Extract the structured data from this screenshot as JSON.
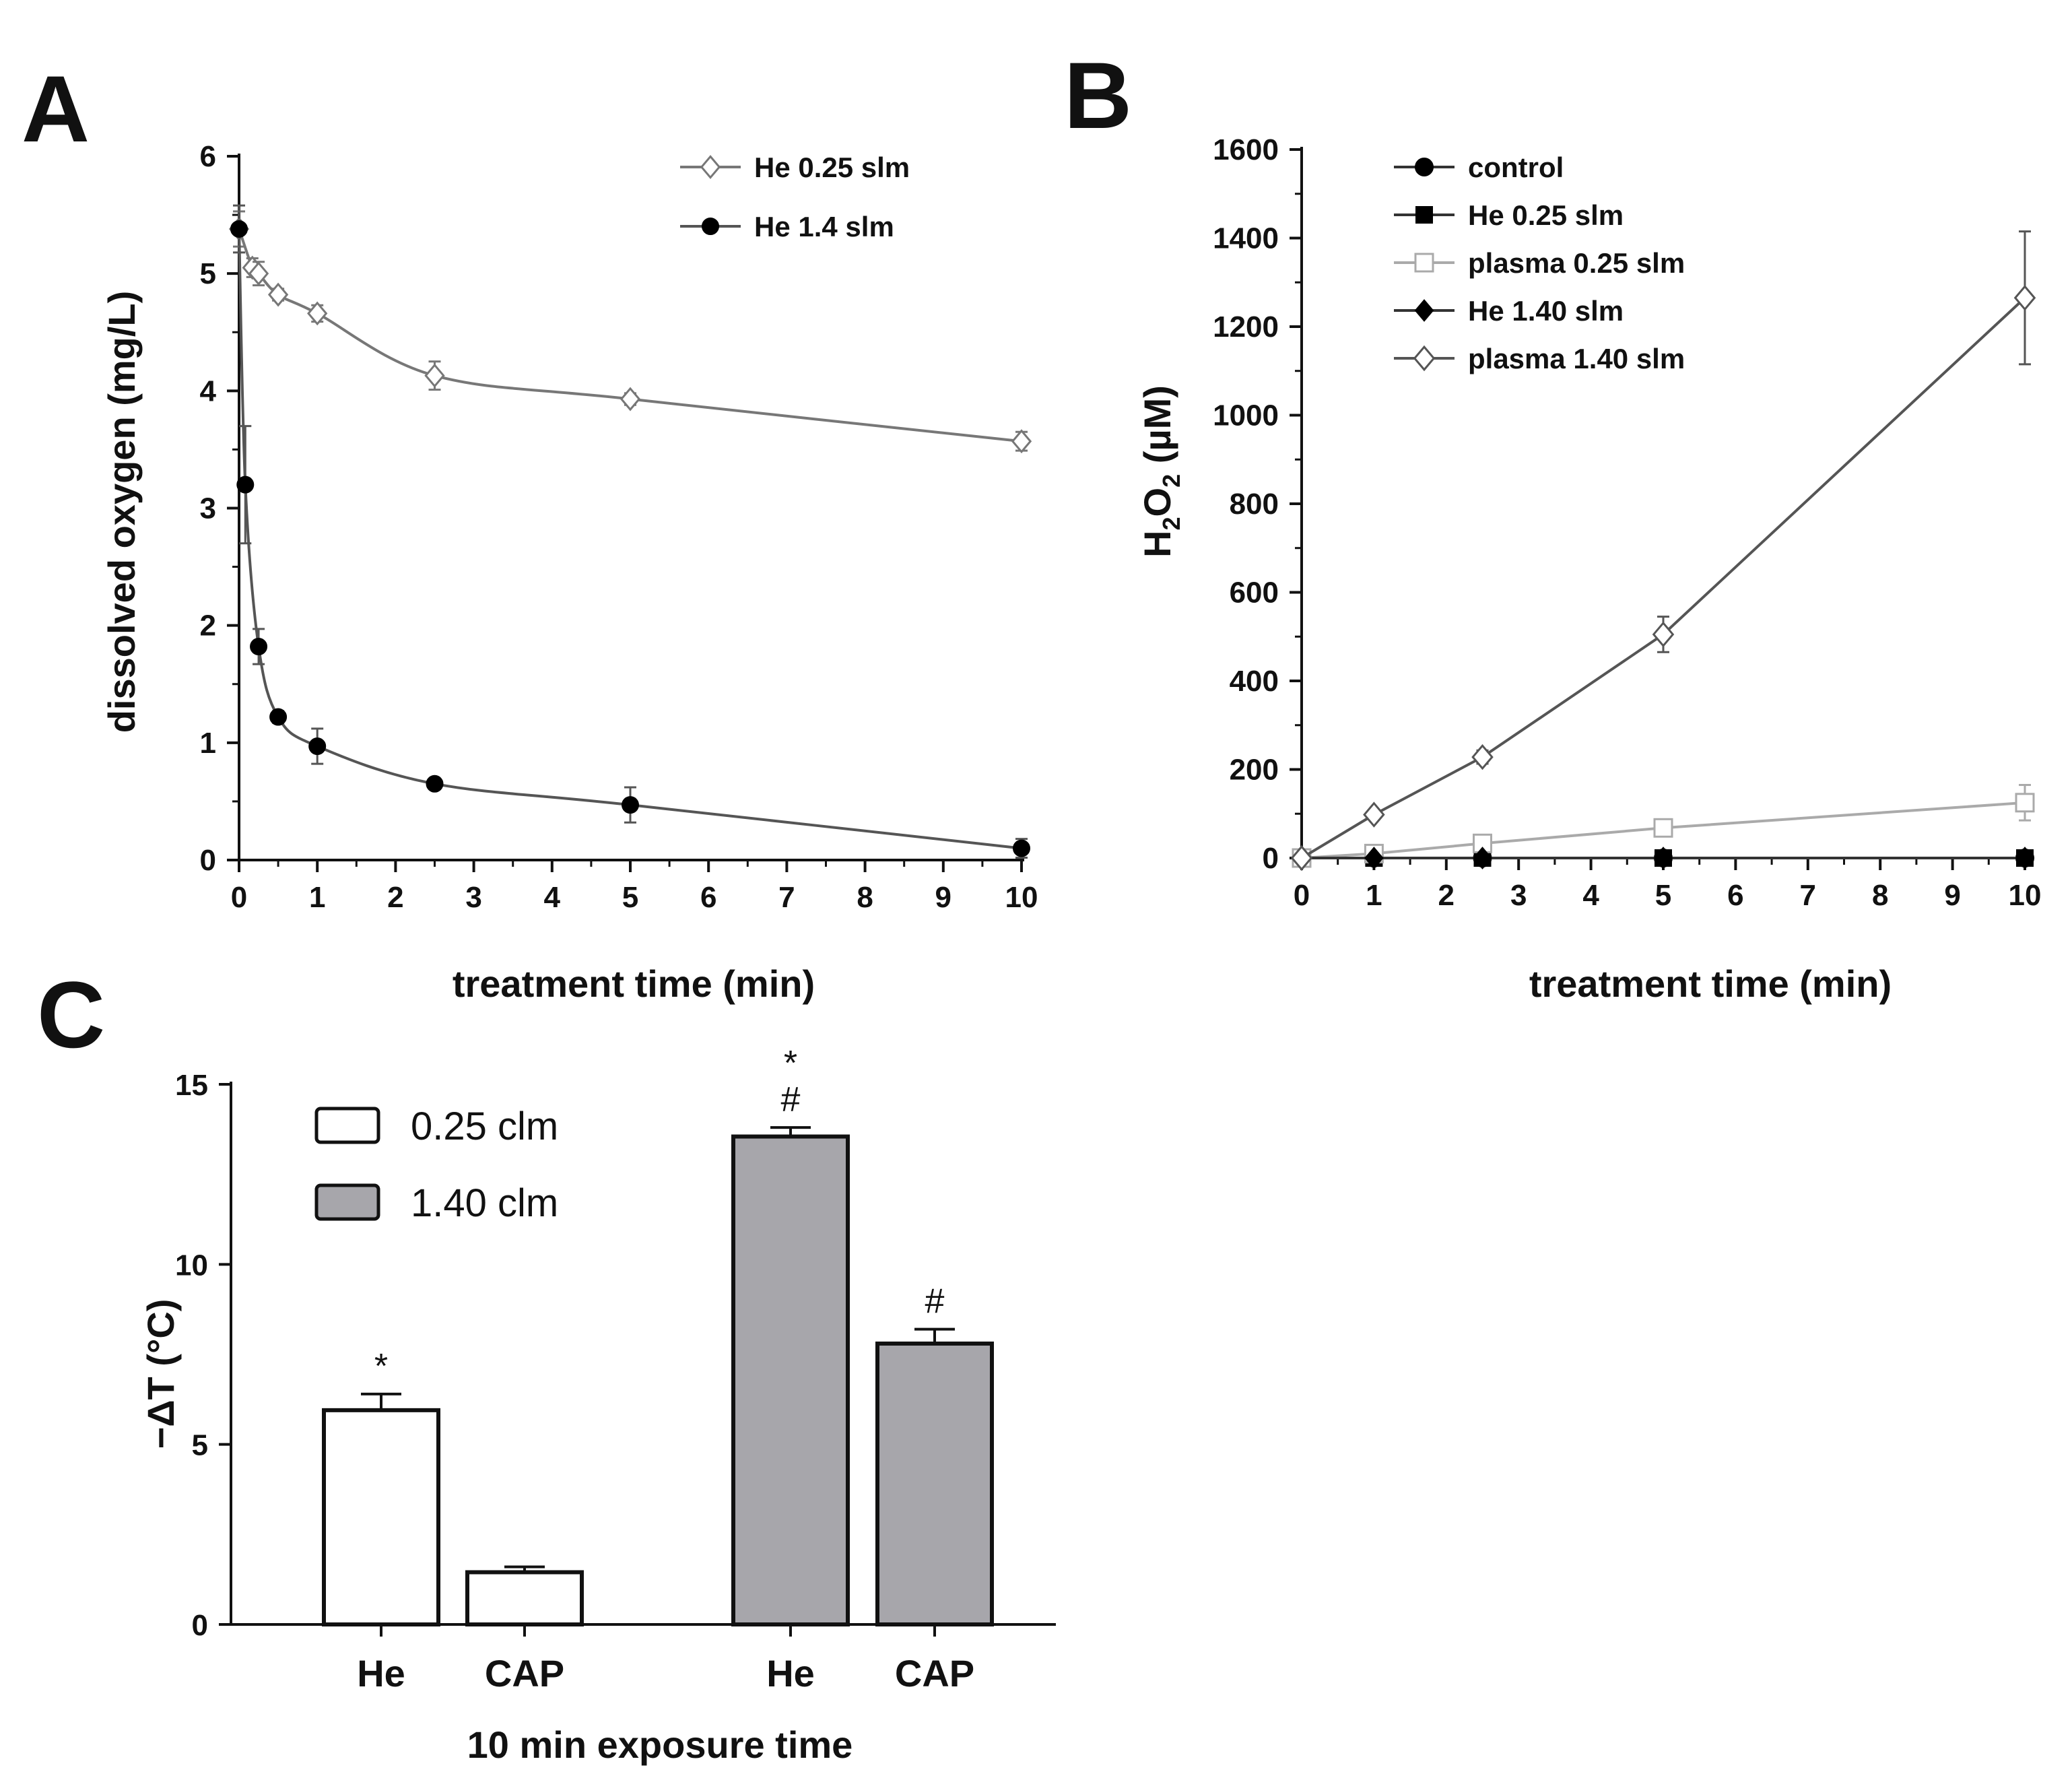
{
  "chart_data": [
    {
      "panel": "A",
      "type": "line",
      "xlabel": "treatment time (min)",
      "ylabel": "dissolved oxygen (mg/L)",
      "xlim": [
        0,
        10
      ],
      "ylim": [
        0,
        6
      ],
      "xticks": [
        "0",
        "1",
        "2",
        "3",
        "4",
        "5",
        "6",
        "7",
        "8",
        "9",
        "10"
      ],
      "yticks": [
        "0",
        "1",
        "2",
        "3",
        "4",
        "5",
        "6"
      ],
      "legend_position": "top-right",
      "series": [
        {
          "name": "He 0.25 slm",
          "marker": "open-diamond",
          "color": "#777777",
          "x": [
            0,
            0.17,
            0.25,
            0.5,
            1,
            2.5,
            5,
            10
          ],
          "y": [
            5.38,
            5.05,
            5.0,
            4.82,
            4.66,
            4.13,
            3.93,
            3.57
          ],
          "err": [
            0.15,
            0.08,
            0.1,
            0.05,
            0.07,
            0.12,
            0.05,
            0.08
          ]
        },
        {
          "name": "He 1.4 slm",
          "marker": "filled-circle",
          "color": "#555555",
          "x": [
            0,
            0.08,
            0.25,
            0.5,
            1,
            2.5,
            5,
            10
          ],
          "y": [
            5.38,
            3.2,
            1.82,
            1.22,
            0.97,
            0.65,
            0.47,
            0.1
          ],
          "err": [
            0.2,
            0.5,
            0.15,
            0.05,
            0.15,
            0.04,
            0.15,
            0.08
          ]
        }
      ]
    },
    {
      "panel": "B",
      "type": "line",
      "xlabel": "treatment time (min)",
      "ylabel_main": "H",
      "ylabel_sub1": "2",
      "ylabel_mid": "O",
      "ylabel_sub2": "2",
      "ylabel_tail": " (µM)",
      "xlim": [
        0,
        10
      ],
      "ylim": [
        0,
        1600
      ],
      "xticks": [
        "0",
        "1",
        "2",
        "3",
        "4",
        "5",
        "6",
        "7",
        "8",
        "9",
        "10"
      ],
      "yticks": [
        "0",
        "200",
        "400",
        "600",
        "800",
        "1000",
        "1200",
        "1400",
        "1600"
      ],
      "legend_position": "top-left",
      "series": [
        {
          "name": "control",
          "marker": "filled-circle",
          "color": "#333333",
          "x": [
            0,
            1,
            2.5,
            5,
            10
          ],
          "y": [
            0,
            0,
            0,
            0,
            0
          ],
          "err": [
            0,
            0,
            0,
            0,
            0
          ]
        },
        {
          "name": "He 0.25 slm",
          "marker": "filled-square",
          "color": "#333333",
          "x": [
            0,
            1,
            2.5,
            5,
            10
          ],
          "y": [
            0,
            0,
            0,
            0,
            0
          ],
          "err": [
            0,
            0,
            0,
            0,
            0
          ]
        },
        {
          "name": "plasma 0.25 slm",
          "marker": "open-square",
          "color": "#aaaaaa",
          "x": [
            0,
            1,
            2.5,
            5,
            10
          ],
          "y": [
            0,
            10,
            33,
            68,
            125
          ],
          "err": [
            0,
            3,
            5,
            8,
            40
          ]
        },
        {
          "name": "He 1.40 slm",
          "marker": "filled-diamond",
          "color": "#333333",
          "x": [
            0,
            1,
            2.5,
            5,
            10
          ],
          "y": [
            0,
            0,
            0,
            0,
            0
          ],
          "err": [
            0,
            0,
            0,
            0,
            0
          ]
        },
        {
          "name": "plasma 1.40 slm",
          "marker": "open-diamond",
          "color": "#555555",
          "x": [
            0,
            1,
            2.5,
            5,
            10
          ],
          "y": [
            0,
            98,
            228,
            505,
            1265
          ],
          "err": [
            0,
            10,
            15,
            40,
            150
          ]
        }
      ]
    },
    {
      "panel": "C",
      "type": "bar",
      "xlabel": "10 min exposure time",
      "ylabel": "−ΔT (°C)",
      "ylim": [
        0,
        15
      ],
      "yticks": [
        "0",
        "5",
        "10",
        "15"
      ],
      "categories": [
        "He",
        "CAP",
        "He",
        "CAP"
      ],
      "groups": [
        "0.25 clm",
        "0.25 clm",
        "1.40 clm",
        "1.40 clm"
      ],
      "values": [
        5.95,
        1.45,
        13.55,
        7.8
      ],
      "err": [
        0.45,
        0.15,
        0.25,
        0.4
      ],
      "annotations": [
        "*",
        "",
        "*\n#",
        "#"
      ],
      "legend_position": "top-left",
      "legend": [
        {
          "name": "0.25 clm",
          "color": "#ffffff"
        },
        {
          "name": "1.40 clm",
          "color": "#a7a6ab"
        }
      ]
    }
  ],
  "panel_labels": [
    "A",
    "B",
    "C"
  ],
  "sig_star": "*",
  "sig_hash": "#"
}
